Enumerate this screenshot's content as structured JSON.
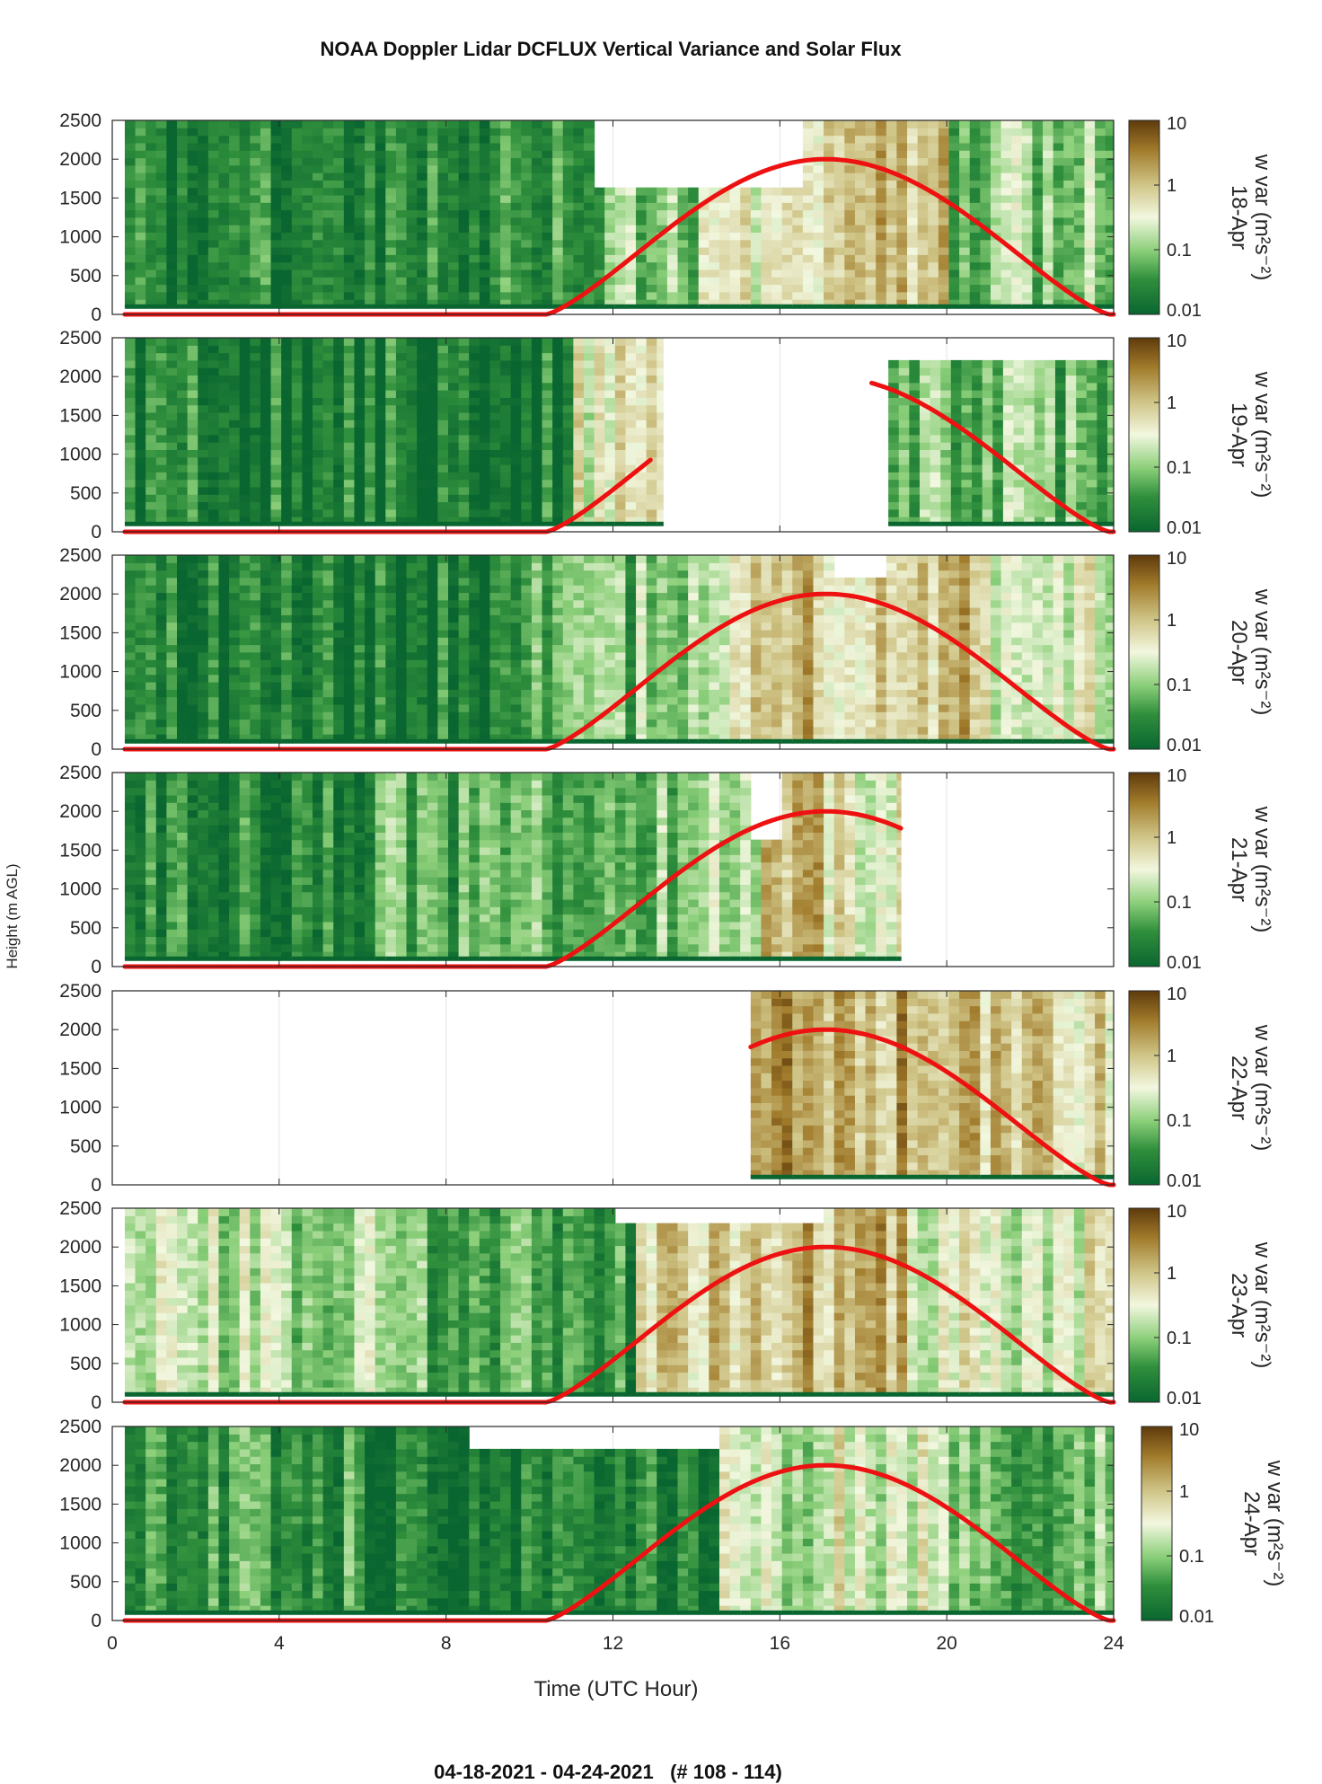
{
  "title": "NOAA Doppler Lidar DCFLUX Vertical Variance and Solar Flux",
  "footer": "04-18-2021 - 04-24-2021   (# 108 - 114)",
  "colors": {
    "solar_flux_line": "#ee1111",
    "colormap": [
      "#0a6630",
      "#2f8f3c",
      "#8ccf7a",
      "#f2f7df",
      "#cfc486",
      "#a07a2a",
      "#5e3a0c"
    ]
  },
  "chart_data": {
    "type": "heatmap",
    "xlabel": "Time (UTC Hour)",
    "ylabel": "Height (m AGL)",
    "xlim": [
      0,
      24
    ],
    "ylim": [
      0,
      2500
    ],
    "xticks": [
      0,
      4,
      8,
      12,
      16,
      20,
      24
    ],
    "yticks": [
      0,
      500,
      1000,
      1500,
      2000,
      2500
    ],
    "colorbar": {
      "label": "w var (m²s⁻²)",
      "scale": "log",
      "range": [
        0.01,
        10
      ],
      "ticks": [
        "10",
        "1",
        "0.1",
        "0.01"
      ]
    },
    "solar_flux_curve": {
      "description": "scaled solar flux",
      "sunrise_hour": 10.4,
      "peak_hour": 17.1,
      "sunset_hour": 23.9,
      "peak_plotted_height": 2000
    },
    "panels": [
      {
        "label": "18-Apr",
        "data_hours": [
          0.3,
          24
        ],
        "flux_hours": [
          0.3,
          24
        ],
        "levels": [
          [
            0,
            5,
            0.02
          ],
          [
            5,
            10,
            0.025
          ],
          [
            10,
            12,
            0.05
          ],
          [
            12,
            14,
            0.1
          ],
          [
            14,
            16,
            0.3
          ],
          [
            16,
            20,
            0.8
          ],
          [
            20,
            24,
            0.1
          ]
        ],
        "gaps": [
          [
            11.5,
            16.5,
            1550,
            2500
          ]
        ]
      },
      {
        "label": "19-Apr",
        "data_hours": [
          [
            0.3,
            13.2
          ],
          [
            18.6,
            24
          ]
        ],
        "flux_hours": [
          [
            0.3,
            12.9
          ],
          [
            18.2,
            24
          ]
        ],
        "levels": [
          [
            0,
            11,
            0.02
          ],
          [
            11,
            13.2,
            0.3
          ],
          [
            18.6,
            24,
            0.08
          ]
        ],
        "gaps": [
          [
            18.6,
            24,
            2150,
            2500
          ]
        ]
      },
      {
        "label": "20-Apr",
        "data_hours": [
          0.3,
          24
        ],
        "flux_hours": [
          0.3,
          24
        ],
        "levels": [
          [
            0,
            10,
            0.02
          ],
          [
            10,
            12.5,
            0.06
          ],
          [
            12.5,
            14.5,
            0.15
          ],
          [
            14.5,
            16.5,
            0.5
          ],
          [
            16.5,
            21,
            1.0
          ],
          [
            21,
            24,
            0.3
          ]
        ],
        "gaps": [
          [
            17.2,
            18.5,
            2200,
            2500
          ]
        ]
      },
      {
        "label": "21-Apr",
        "data_hours": [
          0.3,
          18.9
        ],
        "flux_hours": [
          0.3,
          18.9
        ],
        "levels": [
          [
            0,
            6,
            0.03
          ],
          [
            6,
            10,
            0.05
          ],
          [
            10,
            12.5,
            0.08
          ],
          [
            12.5,
            15.5,
            0.1
          ],
          [
            15.5,
            17,
            1.5
          ],
          [
            17,
            18.9,
            0.4
          ]
        ],
        "gaps": [
          [
            15.2,
            16,
            1600,
            2500
          ]
        ]
      },
      {
        "label": "22-Apr",
        "data_hours": [
          15.3,
          24
        ],
        "flux_hours": [
          15.3,
          24
        ],
        "levels": [
          [
            15.3,
            19,
            1.5
          ],
          [
            19,
            22,
            1.2
          ],
          [
            22,
            24,
            0.6
          ]
        ],
        "gaps": []
      },
      {
        "label": "23-Apr",
        "data_hours": [
          0.3,
          24
        ],
        "flux_hours": [
          0.3,
          24
        ],
        "levels": [
          [
            0,
            7.5,
            0.15
          ],
          [
            7.5,
            10,
            0.04
          ],
          [
            10,
            12.5,
            0.03
          ],
          [
            12.5,
            16,
            0.8
          ],
          [
            16,
            19,
            1.2
          ],
          [
            19,
            24,
            0.3
          ]
        ],
        "gaps": [
          [
            12,
            17,
            2300,
            2500
          ]
        ]
      },
      {
        "label": "24-Apr",
        "data_hours": [
          0.3,
          24
        ],
        "flux_hours": [
          0.3,
          24
        ],
        "levels": [
          [
            0,
            6,
            0.04
          ],
          [
            6,
            12,
            0.02
          ],
          [
            12,
            14.5,
            0.03
          ],
          [
            14.5,
            17,
            0.2
          ],
          [
            17,
            20,
            0.3
          ],
          [
            20,
            24,
            0.08
          ]
        ],
        "gaps": [
          [
            8.5,
            14.5,
            2200,
            2500
          ]
        ]
      }
    ]
  }
}
